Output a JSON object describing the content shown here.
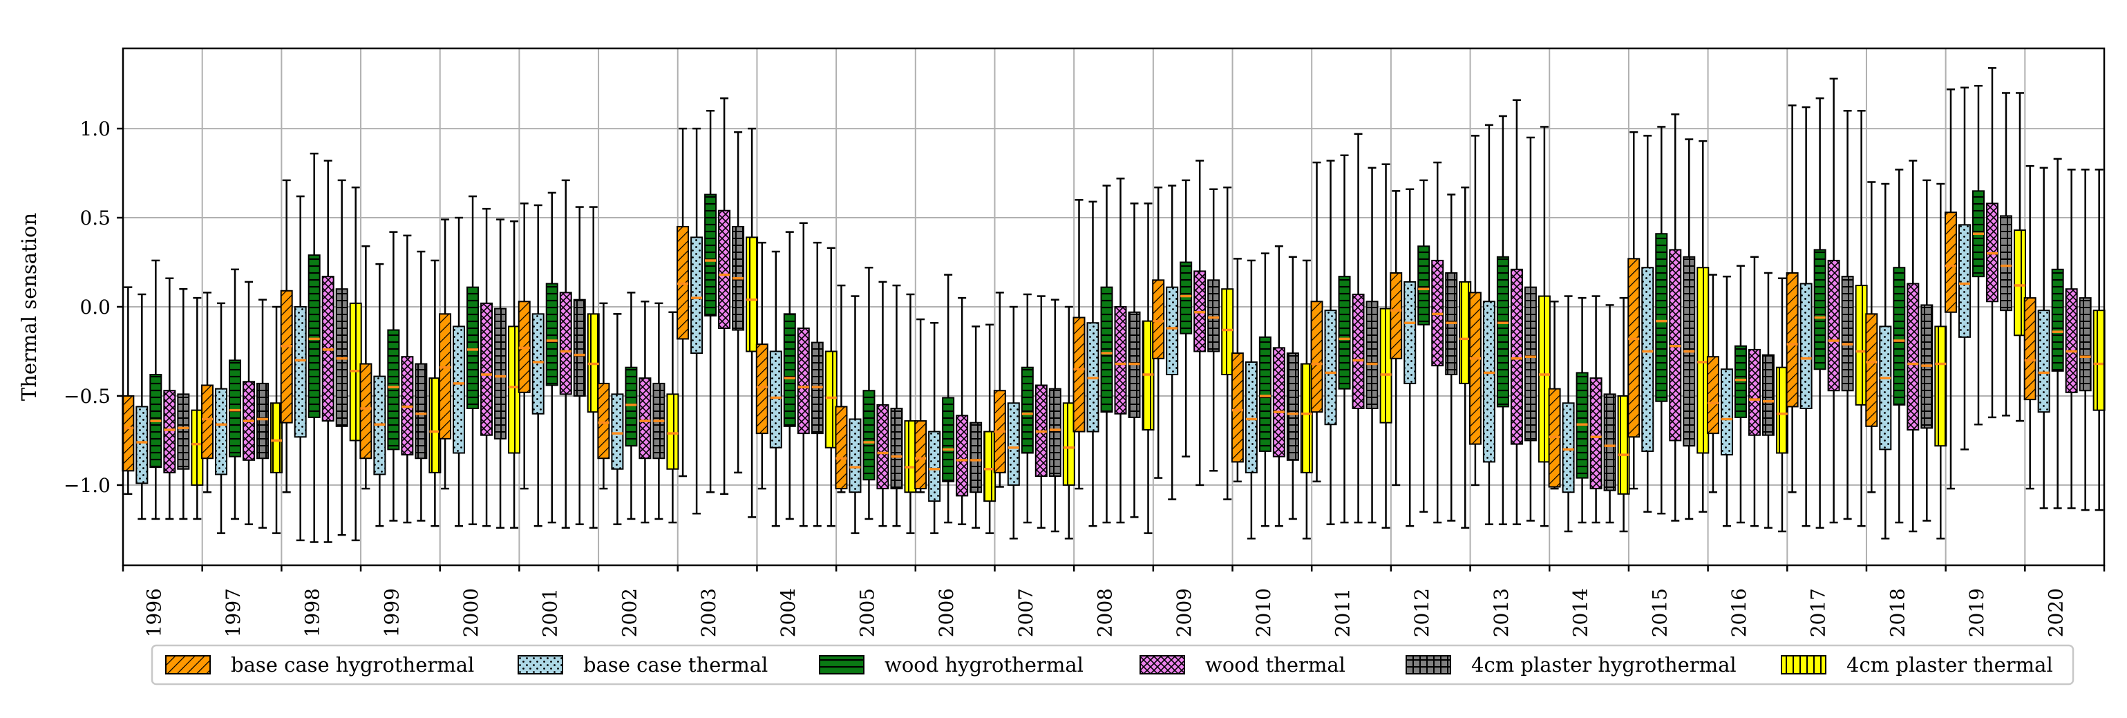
{
  "chart_data": {
    "type": "boxplot",
    "title": "",
    "xlabel": "",
    "ylabel": "Thermal sensation",
    "ylim": [
      -1.45,
      1.45
    ],
    "yticks": [
      -1.0,
      -0.5,
      0.0,
      0.5,
      1.0
    ],
    "ytick_labels": [
      "−1.0",
      "−0.5",
      "0.0",
      "0.5",
      "1.0"
    ],
    "grid": true,
    "legend_position": "bottom",
    "categories": [
      "1996",
      "1997",
      "1998",
      "1999",
      "2000",
      "2001",
      "2002",
      "2003",
      "2004",
      "2005",
      "2006",
      "2007",
      "2008",
      "2009",
      "2010",
      "2011",
      "2012",
      "2013",
      "2014",
      "2015",
      "2016",
      "2017",
      "2018",
      "2019",
      "2020"
    ],
    "series": [
      {
        "name": "base case hygrothermal",
        "color": "#ff9900",
        "pattern": "diagonal-hatch",
        "stats": [
          [
            -1.05,
            -0.92,
            -0.68,
            -0.5,
            0.11
          ],
          [
            -1.04,
            -0.85,
            -0.63,
            -0.44,
            0.08
          ],
          [
            -1.04,
            -0.65,
            -0.22,
            0.09,
            0.71
          ],
          [
            -1.02,
            -0.85,
            -0.57,
            -0.32,
            0.34
          ],
          [
            -1.02,
            -0.74,
            -0.34,
            -0.04,
            0.49
          ],
          [
            -1.02,
            -0.48,
            -0.23,
            0.03,
            0.58
          ],
          [
            -1.02,
            -0.85,
            -0.65,
            -0.43,
            0.02
          ],
          [
            -0.95,
            -0.18,
            0.13,
            0.45,
            1.0
          ],
          [
            -1.02,
            -0.71,
            -0.45,
            -0.21,
            0.36
          ],
          [
            -1.04,
            -1.02,
            -0.85,
            -0.56,
            0.12
          ],
          [
            -1.04,
            -1.02,
            -0.85,
            -0.64,
            -0.07
          ],
          [
            -1.01,
            -0.93,
            -0.7,
            -0.47,
            0.08
          ],
          [
            -1.02,
            -0.7,
            -0.35,
            -0.06,
            0.6
          ],
          [
            -0.96,
            -0.29,
            -0.08,
            0.15,
            0.67
          ],
          [
            -0.98,
            -0.87,
            -0.58,
            -0.26,
            0.27
          ],
          [
            -0.98,
            -0.59,
            -0.32,
            0.03,
            0.81
          ],
          [
            -1.0,
            -0.29,
            -0.02,
            0.19,
            0.65
          ],
          [
            -1.0,
            -0.77,
            -0.29,
            0.08,
            0.96
          ],
          [
            -1.02,
            -1.01,
            -0.73,
            -0.46,
            0.03
          ],
          [
            -1.02,
            -0.73,
            -0.18,
            0.27,
            0.98
          ],
          [
            -1.04,
            -0.71,
            -0.54,
            -0.28,
            0.18
          ],
          [
            -1.04,
            -0.56,
            -0.21,
            0.19,
            1.13
          ],
          [
            -1.04,
            -0.67,
            -0.31,
            -0.04,
            0.7
          ],
          [
            -1.02,
            -0.03,
            0.23,
            0.53,
            1.22
          ],
          [
            -1.02,
            -0.52,
            -0.3,
            0.05,
            0.79
          ]
        ]
      },
      {
        "name": "base case thermal",
        "color": "#add8e6",
        "pattern": "dots",
        "stats": [
          [
            -1.19,
            -0.99,
            -0.76,
            -0.56,
            0.07
          ],
          [
            -1.27,
            -0.94,
            -0.66,
            -0.46,
            0.02
          ],
          [
            -1.31,
            -0.73,
            -0.3,
            0.0,
            0.62
          ],
          [
            -1.23,
            -0.94,
            -0.66,
            -0.39,
            0.24
          ],
          [
            -1.23,
            -0.82,
            -0.43,
            -0.11,
            0.5
          ],
          [
            -1.23,
            -0.6,
            -0.31,
            -0.04,
            0.57
          ],
          [
            -1.22,
            -0.91,
            -0.71,
            -0.49,
            -0.04
          ],
          [
            -1.16,
            -0.26,
            0.05,
            0.39,
            1.0
          ],
          [
            -1.23,
            -0.79,
            -0.51,
            -0.25,
            0.31
          ],
          [
            -1.27,
            -1.04,
            -0.9,
            -0.63,
            0.06
          ],
          [
            -1.27,
            -1.09,
            -0.91,
            -0.7,
            -0.09
          ],
          [
            -1.3,
            -1.0,
            -0.79,
            -0.54,
            0.0
          ],
          [
            -1.23,
            -0.7,
            -0.4,
            -0.09,
            0.59
          ],
          [
            -1.08,
            -0.38,
            -0.12,
            0.11,
            0.68
          ],
          [
            -1.3,
            -0.93,
            -0.63,
            -0.31,
            0.26
          ],
          [
            -1.22,
            -0.66,
            -0.37,
            -0.02,
            0.82
          ],
          [
            -1.23,
            -0.43,
            -0.09,
            0.14,
            0.66
          ],
          [
            -1.22,
            -0.87,
            -0.37,
            0.03,
            1.02
          ],
          [
            -1.26,
            -1.04,
            -0.8,
            -0.54,
            0.06
          ],
          [
            -1.15,
            -0.81,
            -0.25,
            0.22,
            0.96
          ],
          [
            -1.23,
            -0.83,
            -0.63,
            -0.35,
            0.17
          ],
          [
            -1.23,
            -0.57,
            -0.29,
            0.13,
            1.12
          ],
          [
            -1.3,
            -0.8,
            -0.4,
            -0.11,
            0.69
          ],
          [
            -0.8,
            -0.17,
            0.13,
            0.46,
            1.23
          ],
          [
            -1.13,
            -0.59,
            -0.37,
            -0.02,
            0.78
          ]
        ]
      },
      {
        "name": "wood hygrothermal",
        "color": "#0a7a14",
        "pattern": "horizontal-hatch",
        "stats": [
          [
            -1.19,
            -0.9,
            -0.64,
            -0.38,
            0.26
          ],
          [
            -1.19,
            -0.84,
            -0.58,
            -0.3,
            0.21
          ],
          [
            -1.32,
            -0.62,
            -0.18,
            0.29,
            0.86
          ],
          [
            -1.2,
            -0.8,
            -0.45,
            -0.13,
            0.42
          ],
          [
            -1.22,
            -0.57,
            -0.24,
            0.11,
            0.62
          ],
          [
            -1.21,
            -0.44,
            -0.19,
            0.13,
            0.64
          ],
          [
            -1.19,
            -0.78,
            -0.55,
            -0.34,
            0.08
          ],
          [
            -1.04,
            -0.05,
            0.26,
            0.63,
            1.1
          ],
          [
            -1.19,
            -0.67,
            -0.4,
            -0.04,
            0.42
          ],
          [
            -1.19,
            -0.97,
            -0.76,
            -0.47,
            0.22
          ],
          [
            -1.21,
            -0.98,
            -0.8,
            -0.51,
            0.18
          ],
          [
            -1.21,
            -0.82,
            -0.6,
            -0.34,
            0.07
          ],
          [
            -1.21,
            -0.59,
            -0.26,
            0.11,
            0.68
          ],
          [
            -0.84,
            -0.15,
            0.06,
            0.25,
            0.71
          ],
          [
            -1.23,
            -0.81,
            -0.5,
            -0.17,
            0.3
          ],
          [
            -1.21,
            -0.46,
            -0.18,
            0.17,
            0.85
          ],
          [
            -1.15,
            -0.1,
            0.1,
            0.34,
            0.71
          ],
          [
            -1.22,
            -0.56,
            -0.09,
            0.28,
            1.07
          ],
          [
            -1.21,
            -0.96,
            -0.66,
            -0.37,
            0.05
          ],
          [
            -1.16,
            -0.53,
            -0.08,
            0.41,
            1.01
          ],
          [
            -1.21,
            -0.62,
            -0.41,
            -0.22,
            0.23
          ],
          [
            -1.24,
            -0.35,
            -0.06,
            0.32,
            1.17
          ],
          [
            -1.21,
            -0.55,
            -0.19,
            0.22,
            0.77
          ],
          [
            -0.66,
            0.17,
            0.41,
            0.65,
            1.24
          ],
          [
            -1.13,
            -0.36,
            -0.14,
            0.21,
            0.83
          ]
        ]
      },
      {
        "name": "wood thermal",
        "color": "#ee82ee",
        "pattern": "cross-hatch",
        "stats": [
          [
            -1.19,
            -0.93,
            -0.69,
            -0.47,
            0.16
          ],
          [
            -1.22,
            -0.86,
            -0.64,
            -0.42,
            0.14
          ],
          [
            -1.32,
            -0.64,
            -0.24,
            0.17,
            0.82
          ],
          [
            -1.21,
            -0.83,
            -0.56,
            -0.28,
            0.4
          ],
          [
            -1.23,
            -0.72,
            -0.38,
            0.02,
            0.55
          ],
          [
            -1.24,
            -0.49,
            -0.25,
            0.08,
            0.71
          ],
          [
            -1.21,
            -0.85,
            -0.64,
            -0.4,
            0.03
          ],
          [
            -1.05,
            -0.12,
            0.18,
            0.54,
            1.17
          ],
          [
            -1.23,
            -0.71,
            -0.45,
            -0.12,
            0.47
          ],
          [
            -1.23,
            -1.02,
            -0.82,
            -0.55,
            0.14
          ],
          [
            -1.22,
            -1.06,
            -0.86,
            -0.61,
            0.05
          ],
          [
            -1.24,
            -0.95,
            -0.7,
            -0.44,
            0.06
          ],
          [
            -1.21,
            -0.6,
            -0.32,
            0.0,
            0.72
          ],
          [
            -1.0,
            -0.25,
            -0.03,
            0.2,
            0.82
          ],
          [
            -1.23,
            -0.84,
            -0.59,
            -0.23,
            0.34
          ],
          [
            -1.21,
            -0.57,
            -0.3,
            0.07,
            0.97
          ],
          [
            -1.21,
            -0.33,
            -0.04,
            0.26,
            0.81
          ],
          [
            -1.22,
            -0.77,
            -0.29,
            0.21,
            1.16
          ],
          [
            -1.21,
            -1.02,
            -0.73,
            -0.4,
            0.06
          ],
          [
            -1.2,
            -0.75,
            -0.22,
            0.32,
            1.08
          ],
          [
            -1.23,
            -0.72,
            -0.52,
            -0.24,
            0.28
          ],
          [
            -1.21,
            -0.47,
            -0.19,
            0.26,
            1.28
          ],
          [
            -1.26,
            -0.69,
            -0.32,
            0.13,
            0.82
          ],
          [
            -0.62,
            0.03,
            0.3,
            0.58,
            1.34
          ],
          [
            -1.13,
            -0.48,
            -0.25,
            0.1,
            0.77
          ]
        ]
      },
      {
        "name": "4cm plaster hygrothermal",
        "color": "#808080",
        "pattern": "grid",
        "stats": [
          [
            -1.19,
            -0.91,
            -0.68,
            -0.49,
            0.1
          ],
          [
            -1.24,
            -0.85,
            -0.63,
            -0.43,
            0.04
          ],
          [
            -1.28,
            -0.67,
            -0.29,
            0.1,
            0.71
          ],
          [
            -1.2,
            -0.85,
            -0.6,
            -0.32,
            0.31
          ],
          [
            -1.24,
            -0.74,
            -0.39,
            -0.01,
            0.49
          ],
          [
            -1.22,
            -0.5,
            -0.27,
            0.04,
            0.56
          ],
          [
            -1.19,
            -0.85,
            -0.64,
            -0.43,
            0.02
          ],
          [
            -0.93,
            -0.13,
            0.16,
            0.45,
            0.98
          ],
          [
            -1.23,
            -0.71,
            -0.45,
            -0.2,
            0.36
          ],
          [
            -1.23,
            -1.02,
            -0.84,
            -0.57,
            0.12
          ],
          [
            -1.24,
            -1.04,
            -0.86,
            -0.65,
            -0.11
          ],
          [
            -1.26,
            -0.95,
            -0.69,
            -0.46,
            0.04
          ],
          [
            -1.18,
            -0.62,
            -0.32,
            -0.03,
            0.58
          ],
          [
            -0.92,
            -0.25,
            -0.06,
            0.15,
            0.66
          ],
          [
            -1.19,
            -0.86,
            -0.6,
            -0.26,
            0.28
          ],
          [
            -1.21,
            -0.57,
            -0.32,
            0.03,
            0.78
          ],
          [
            -1.2,
            -0.38,
            -0.09,
            0.19,
            0.63
          ],
          [
            -1.2,
            -0.75,
            -0.28,
            0.11,
            0.95
          ],
          [
            -1.21,
            -1.03,
            -0.78,
            -0.49,
            0.01
          ],
          [
            -1.19,
            -0.78,
            -0.25,
            0.28,
            0.94
          ],
          [
            -1.24,
            -0.72,
            -0.53,
            -0.27,
            0.19
          ],
          [
            -1.19,
            -0.47,
            -0.21,
            0.17,
            1.1
          ],
          [
            -1.2,
            -0.68,
            -0.33,
            0.01,
            0.71
          ],
          [
            -0.61,
            -0.02,
            0.23,
            0.51,
            1.2
          ],
          [
            -1.14,
            -0.47,
            -0.28,
            0.05,
            0.77
          ]
        ]
      },
      {
        "name": "4cm plaster thermal",
        "color": "#ffff00",
        "pattern": "vertical-hatch",
        "stats": [
          [
            -1.19,
            -1.0,
            -0.77,
            -0.58,
            0.05
          ],
          [
            -1.27,
            -0.93,
            -0.75,
            -0.54,
            0.0
          ],
          [
            -1.31,
            -0.75,
            -0.36,
            0.02,
            0.67
          ],
          [
            -1.23,
            -0.93,
            -0.7,
            -0.4,
            0.26
          ],
          [
            -1.24,
            -0.82,
            -0.45,
            -0.11,
            0.48
          ],
          [
            -1.24,
            -0.59,
            -0.32,
            -0.04,
            0.56
          ],
          [
            -1.21,
            -0.91,
            -0.71,
            -0.49,
            -0.03
          ],
          [
            -1.18,
            -0.25,
            0.04,
            0.39,
            1.0
          ],
          [
            -1.23,
            -0.79,
            -0.51,
            -0.25,
            0.33
          ],
          [
            -1.27,
            -1.04,
            -0.9,
            -0.64,
            0.07
          ],
          [
            -1.27,
            -1.09,
            -0.91,
            -0.7,
            -0.1
          ],
          [
            -1.3,
            -1.0,
            -0.79,
            -0.54,
            0.0
          ],
          [
            -1.27,
            -0.69,
            -0.38,
            -0.08,
            0.58
          ],
          [
            -1.08,
            -0.38,
            -0.13,
            0.1,
            0.67
          ],
          [
            -1.3,
            -0.93,
            -0.6,
            -0.32,
            0.26
          ],
          [
            -1.24,
            -0.65,
            -0.38,
            -0.01,
            0.8
          ],
          [
            -1.24,
            -0.43,
            -0.18,
            0.14,
            0.67
          ],
          [
            -1.23,
            -0.87,
            -0.38,
            0.06,
            1.01
          ],
          [
            -1.26,
            -1.05,
            -0.83,
            -0.5,
            0.05
          ],
          [
            -1.15,
            -0.82,
            -0.31,
            0.22,
            0.93
          ],
          [
            -1.26,
            -0.82,
            -0.6,
            -0.34,
            0.16
          ],
          [
            -1.23,
            -0.55,
            -0.25,
            0.12,
            1.1
          ],
          [
            -1.3,
            -0.78,
            -0.32,
            -0.11,
            0.69
          ],
          [
            -0.64,
            -0.16,
            0.12,
            0.43,
            1.2
          ],
          [
            -1.14,
            -0.58,
            -0.32,
            -0.02,
            0.77
          ]
        ]
      }
    ],
    "stats_order": [
      "whisker_low",
      "q1",
      "median",
      "q3",
      "whisker_high"
    ],
    "median_color": "#ff8c1a"
  }
}
